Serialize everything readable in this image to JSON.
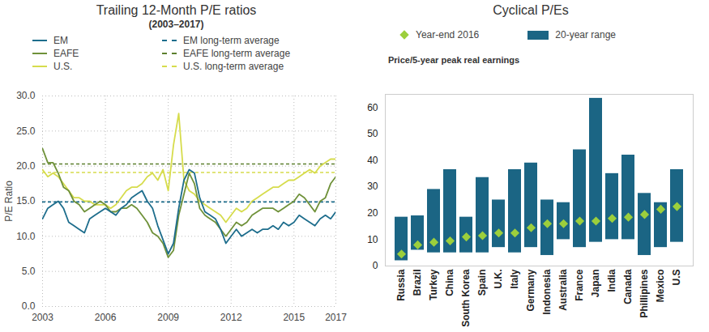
{
  "chart_data": [
    {
      "type": "line",
      "title": "Trailing 12-Month P/E ratios",
      "subtitle": "(2003–2017)",
      "ylabel": "P/E Ratio",
      "x": [
        2003,
        2003.25,
        2003.5,
        2003.75,
        2004,
        2004.25,
        2004.5,
        2004.75,
        2005,
        2005.25,
        2005.5,
        2005.75,
        2006,
        2006.25,
        2006.5,
        2006.75,
        2007,
        2007.25,
        2007.5,
        2007.75,
        2008,
        2008.25,
        2008.5,
        2008.75,
        2009,
        2009.25,
        2009.5,
        2009.75,
        2010,
        2010.25,
        2010.5,
        2010.75,
        2011,
        2011.25,
        2011.5,
        2011.75,
        2012,
        2012.25,
        2012.5,
        2012.75,
        2013,
        2013.25,
        2013.5,
        2013.75,
        2014,
        2014.25,
        2014.5,
        2014.75,
        2015,
        2015.25,
        2015.5,
        2015.75,
        2016,
        2016.25,
        2016.5,
        2016.75,
        2017
      ],
      "series": [
        {
          "name": "U.S.",
          "color": "#d6dc4c",
          "values": [
            19.5,
            18.5,
            19,
            18.5,
            17.5,
            16.5,
            15.5,
            15.5,
            15,
            15,
            14.5,
            14.5,
            14.5,
            14,
            14.5,
            15.5,
            16.5,
            17,
            17,
            17.5,
            18.5,
            19,
            18,
            19.5,
            16.5,
            23,
            27.5,
            18,
            16.5,
            16,
            15,
            14.5,
            14,
            13.5,
            13,
            12,
            13,
            14,
            13.5,
            14,
            15,
            15.5,
            16,
            16.5,
            17,
            17,
            17.5,
            18,
            18,
            18.5,
            19,
            19.5,
            19,
            20,
            20.5,
            21,
            21
          ]
        },
        {
          "name": "EAFE",
          "color": "#6f9139",
          "values": [
            22.5,
            20.5,
            20.5,
            19,
            17,
            16.5,
            15,
            14.5,
            13.5,
            14,
            14.5,
            15,
            14.5,
            13.5,
            13.5,
            14,
            14,
            14.5,
            14,
            13,
            12,
            10.5,
            10,
            9,
            7,
            8,
            13,
            16,
            19,
            17.5,
            14,
            13,
            12.5,
            12,
            11,
            10,
            11,
            12,
            11.5,
            12,
            13,
            13.5,
            14,
            14,
            14,
            13.5,
            14,
            14.5,
            15,
            16,
            15.5,
            14.5,
            13.5,
            15,
            15.5,
            17.5,
            18.5
          ]
        },
        {
          "name": "EM",
          "color": "#1d6d8c",
          "values": [
            12.5,
            14,
            14.5,
            15,
            14,
            12,
            11.5,
            11,
            10.5,
            12.5,
            13,
            13.5,
            14,
            13.5,
            13,
            14,
            14.5,
            15.5,
            16,
            16.5,
            15,
            14,
            11.5,
            9.5,
            7.5,
            9,
            14,
            18,
            19.5,
            19,
            15.5,
            13.5,
            13,
            12.5,
            11,
            9,
            10,
            11,
            10,
            10.5,
            11,
            10.5,
            11,
            11,
            11.5,
            11,
            12,
            11.5,
            12,
            13,
            12.5,
            12,
            11.5,
            12.5,
            13,
            12.5,
            13.5
          ]
        }
      ],
      "reference_lines": [
        {
          "name": "EM long-term average",
          "color": "#1d6d8c",
          "line_style": "dashed",
          "value": 14.9
        },
        {
          "name": "EAFE long-term average",
          "color": "#5c7f2e",
          "line_style": "dashed",
          "value": 20.3
        },
        {
          "name": "U.S. long-term average",
          "color": "#d6dc4c",
          "line_style": "dashed",
          "value": 19.1
        }
      ],
      "legend_order": [
        "EM",
        "EM long-term average",
        "EAFE",
        "EAFE long-term average",
        "U.S.",
        "U.S. long-term average"
      ],
      "xlim": [
        2003,
        2017
      ],
      "xticks": [
        2003,
        2006,
        2009,
        2012,
        2015,
        2017
      ],
      "ylim": [
        0,
        30
      ],
      "yticks": [
        {
          "value": 0,
          "label": "0.0"
        },
        {
          "value": 5,
          "label": "5.0"
        },
        {
          "value": 10,
          "label": "10.0"
        },
        {
          "value": 15,
          "label": "15.0"
        },
        {
          "value": 20,
          "label": "20.0"
        },
        {
          "value": 25,
          "label": "25.0"
        },
        {
          "value": 30,
          "label": "30.0"
        }
      ],
      "grid": true
    },
    {
      "type": "bar",
      "title": "Cyclical P/Es",
      "ylabel": "Price/5-year peak real earnings",
      "categories": [
        "Russia",
        "Brazil",
        "Turkey",
        "China",
        "South Korea",
        "Spain",
        "U.K.",
        "Italy",
        "Germany",
        "Indonesia",
        "Australia",
        "France",
        "Japan",
        "India",
        "Canada",
        "Phillipines",
        "Mexico",
        "U.S"
      ],
      "series": [
        {
          "name": "Year-end 2016",
          "type": "scatter",
          "marker": "diamond",
          "color": "#9ccf3c",
          "values": [
            4.5,
            8,
            9,
            9.5,
            11,
            11.5,
            12.5,
            12.5,
            14.5,
            16,
            16,
            17,
            17,
            18,
            18.5,
            19.5,
            21.5,
            22.5
          ]
        },
        {
          "name": "20-year range",
          "type": "bar",
          "color": "#1b6584",
          "low": [
            2,
            6,
            5,
            5,
            5,
            5,
            7,
            5,
            7,
            4,
            10,
            7,
            9,
            10,
            10,
            4,
            7,
            9
          ],
          "high": [
            18.5,
            19,
            29,
            36.5,
            18.5,
            33.5,
            25,
            36.5,
            39,
            25,
            24,
            44,
            63.5,
            35,
            42,
            27.5,
            24,
            36.5
          ]
        }
      ],
      "ylim": [
        0,
        65
      ],
      "yticks": [
        0,
        10,
        20,
        30,
        40,
        50,
        60
      ],
      "grid": false
    }
  ]
}
